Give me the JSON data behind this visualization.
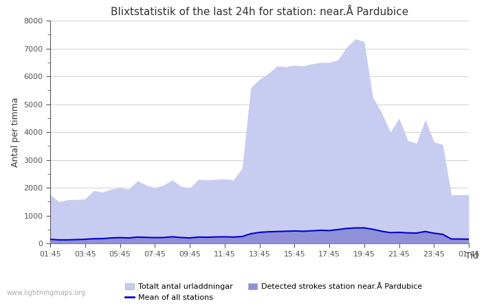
{
  "title": "Blixtstatistik of the last 24h for station: near.Å Pardubice",
  "ylabel": "Antal per timma",
  "xlabel": "Tid",
  "watermark": "www.lightningmaps.org",
  "ylim": [
    0,
    8000
  ],
  "yticks": [
    0,
    1000,
    2000,
    3000,
    4000,
    5000,
    6000,
    7000,
    8000
  ],
  "xtick_labels": [
    "01:45",
    "03:45",
    "05:45",
    "07:45",
    "09:45",
    "11:45",
    "13:45",
    "15:45",
    "17:45",
    "19:45",
    "21:45",
    "23:45",
    "01:45"
  ],
  "legend1_label": "Totalt antal urladdningar",
  "legend2_label": "Mean of all stations",
  "legend3_label": "Detected strokes station near.Å Pardubice",
  "fill_color_light": "#c8ccf0",
  "fill_color_dark": "#9090d8",
  "line_color": "#0000cc",
  "background_color": "#ffffff",
  "grid_color": "#bbbbbb",
  "tick_color": "#555555",
  "x": [
    0,
    0.5,
    1,
    1.5,
    2,
    2.5,
    3,
    3.5,
    4,
    4.5,
    5,
    5.5,
    6,
    6.5,
    7,
    7.5,
    8,
    8.5,
    9,
    9.5,
    10,
    10.5,
    11,
    11.5,
    12,
    12.5,
    13,
    13.5,
    14,
    14.5,
    15,
    15.5,
    16,
    16.5,
    17,
    17.5,
    18,
    18.5,
    19,
    19.5,
    20,
    20.5,
    21,
    21.5,
    22,
    22.5,
    23,
    23.5,
    24
  ],
  "total_strokes": [
    1750,
    1500,
    1570,
    1580,
    1600,
    1900,
    1850,
    1950,
    2000,
    1950,
    2250,
    2100,
    2000,
    2100,
    2280,
    2050,
    2000,
    2300,
    2280,
    2300,
    2320,
    2280,
    2700,
    5600,
    5900,
    6100,
    6370,
    6350,
    6400,
    6380,
    6450,
    6500,
    6500,
    6600,
    7050,
    7350,
    7250,
    5250,
    4700,
    4000,
    4500,
    3700,
    3600,
    4450,
    3650,
    3550,
    1750,
    1750,
    1750
  ],
  "detected_strokes": [
    150,
    130,
    130,
    140,
    150,
    170,
    175,
    200,
    210,
    200,
    230,
    220,
    210,
    215,
    240,
    215,
    200,
    230,
    225,
    235,
    240,
    230,
    250,
    350,
    400,
    420,
    430,
    440,
    450,
    440,
    455,
    475,
    465,
    500,
    540,
    560,
    560,
    510,
    440,
    390,
    400,
    380,
    375,
    430,
    370,
    330,
    160,
    160,
    155
  ],
  "mean_strokes": [
    150,
    130,
    130,
    140,
    150,
    170,
    175,
    200,
    210,
    200,
    230,
    220,
    210,
    215,
    240,
    215,
    200,
    230,
    225,
    235,
    240,
    230,
    250,
    350,
    400,
    420,
    430,
    440,
    450,
    440,
    455,
    475,
    465,
    500,
    540,
    560,
    560,
    510,
    440,
    390,
    400,
    380,
    375,
    430,
    370,
    330,
    160,
    160,
    155
  ]
}
